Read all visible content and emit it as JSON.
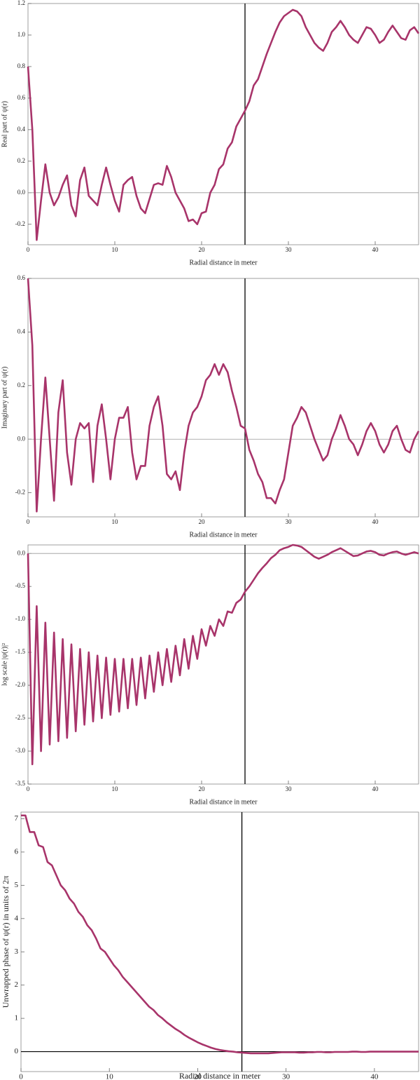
{
  "chart_data": [
    {
      "type": "line",
      "x_label": "Radial distance in meter",
      "y_label": "Real part of ψ(r)",
      "xlim": [
        0,
        45
      ],
      "ylim": [
        -0.33,
        1.2
      ],
      "xticks": [
        0,
        10,
        20,
        30,
        40
      ],
      "yticks": [
        -0.2,
        {
          "value": 0,
          "label": "0.0"
        },
        0.2,
        0.4,
        0.6,
        0.8,
        {
          "value": 1,
          "label": "1.0"
        },
        1.2
      ],
      "vline": 25,
      "hline": 0,
      "x": [
        0,
        0.5,
        1,
        1.5,
        2,
        2.5,
        3,
        3.5,
        4,
        4.5,
        5,
        5.5,
        6,
        6.5,
        7,
        7.5,
        8,
        8.5,
        9,
        9.5,
        10,
        10.5,
        11,
        11.5,
        12,
        12.5,
        13,
        13.5,
        14,
        14.5,
        15,
        15.5,
        16,
        16.5,
        17,
        17.5,
        18,
        18.5,
        19,
        19.5,
        20,
        20.5,
        21,
        21.5,
        22,
        22.5,
        23,
        23.5,
        24,
        24.5,
        25,
        25.5,
        26,
        26.5,
        27,
        27.5,
        28,
        28.5,
        29,
        29.5,
        30,
        30.5,
        31,
        31.5,
        32,
        32.5,
        33,
        33.5,
        34,
        34.5,
        35,
        35.5,
        36,
        36.5,
        37,
        37.5,
        38,
        38.5,
        39,
        39.5,
        40,
        40.5,
        41,
        41.5,
        42,
        42.5,
        43,
        43.5,
        44,
        44.5,
        45
      ],
      "series": [
        {
          "color": "#a8346a",
          "values": [
            0.8,
            0.4,
            -0.3,
            -0.05,
            0.18,
            0.0,
            -0.08,
            -0.03,
            0.05,
            0.11,
            -0.08,
            -0.15,
            0.08,
            0.16,
            -0.02,
            -0.05,
            -0.08,
            0.05,
            0.16,
            0.05,
            -0.05,
            -0.12,
            0.05,
            0.08,
            0.1,
            -0.02,
            -0.1,
            -0.13,
            -0.04,
            0.05,
            0.06,
            0.05,
            0.17,
            0.1,
            0.0,
            -0.05,
            -0.1,
            -0.18,
            -0.17,
            -0.2,
            -0.13,
            -0.12,
            0.0,
            0.05,
            0.15,
            0.18,
            0.28,
            0.32,
            0.42,
            0.47,
            0.52,
            0.58,
            0.68,
            0.72,
            0.8,
            0.88,
            0.95,
            1.02,
            1.08,
            1.12,
            1.14,
            1.16,
            1.15,
            1.12,
            1.05,
            1.0,
            0.95,
            0.92,
            0.9,
            0.95,
            1.02,
            1.05,
            1.09,
            1.05,
            1.0,
            0.97,
            0.95,
            1.0,
            1.05,
            1.04,
            1.0,
            0.95,
            0.97,
            1.02,
            1.06,
            1.02,
            0.98,
            0.97,
            1.03,
            1.05,
            1.01
          ]
        }
      ]
    },
    {
      "type": "line",
      "x_label": "Radial distance in meter",
      "y_label": "Imaginary part of ψ(r)",
      "xlim": [
        0,
        45
      ],
      "ylim": [
        -0.29,
        0.6
      ],
      "xticks": [
        0,
        10,
        20,
        30,
        40
      ],
      "yticks": [
        -0.2,
        {
          "value": 0,
          "label": "0.0"
        },
        0.2,
        0.4,
        0.6
      ],
      "vline": 25,
      "hline": 0,
      "x": [
        0,
        0.5,
        1,
        1.5,
        2,
        2.5,
        3,
        3.5,
        4,
        4.5,
        5,
        5.5,
        6,
        6.5,
        7,
        7.5,
        8,
        8.5,
        9,
        9.5,
        10,
        10.5,
        11,
        11.5,
        12,
        12.5,
        13,
        13.5,
        14,
        14.5,
        15,
        15.5,
        16,
        16.5,
        17,
        17.5,
        18,
        18.5,
        19,
        19.5,
        20,
        20.5,
        21,
        21.5,
        22,
        22.5,
        23,
        23.5,
        24,
        24.5,
        25,
        25.5,
        26,
        26.5,
        27,
        27.5,
        28,
        28.5,
        29,
        29.5,
        30,
        30.5,
        31,
        31.5,
        32,
        32.5,
        33,
        33.5,
        34,
        34.5,
        35,
        35.5,
        36,
        36.5,
        37,
        37.5,
        38,
        38.5,
        39,
        39.5,
        40,
        40.5,
        41,
        41.5,
        42,
        42.5,
        43,
        43.5,
        44,
        44.5,
        45
      ],
      "series": [
        {
          "color": "#a8346a",
          "values": [
            0.6,
            0.35,
            -0.27,
            0.0,
            0.23,
            0.0,
            -0.23,
            0.1,
            0.22,
            -0.05,
            -0.17,
            0.0,
            0.06,
            0.04,
            0.06,
            -0.16,
            0.05,
            0.13,
            0.0,
            -0.15,
            0.0,
            0.08,
            0.08,
            0.12,
            -0.05,
            -0.15,
            -0.1,
            -0.1,
            0.05,
            0.12,
            0.16,
            0.05,
            -0.13,
            -0.15,
            -0.12,
            -0.19,
            -0.05,
            0.05,
            0.1,
            0.12,
            0.16,
            0.22,
            0.24,
            0.28,
            0.24,
            0.28,
            0.25,
            0.18,
            0.12,
            0.05,
            0.04,
            -0.04,
            -0.08,
            -0.13,
            -0.16,
            -0.22,
            -0.22,
            -0.24,
            -0.19,
            -0.15,
            -0.05,
            0.05,
            0.08,
            0.12,
            0.1,
            0.05,
            0.0,
            -0.04,
            -0.08,
            -0.06,
            0.0,
            0.04,
            0.09,
            0.05,
            0.0,
            -0.02,
            -0.06,
            -0.02,
            0.03,
            0.06,
            0.03,
            -0.02,
            -0.05,
            -0.02,
            0.03,
            0.05,
            0.0,
            -0.04,
            -0.05,
            0.0,
            0.03
          ]
        }
      ]
    },
    {
      "type": "line",
      "x_label": "Radial distance in meter",
      "y_label": "log scale  |ψ(r)|²",
      "xlim": [
        0,
        45
      ],
      "ylim": [
        -3.5,
        0.13
      ],
      "xticks": [
        0,
        10,
        20,
        30,
        40
      ],
      "yticks": [
        {
          "value": 0,
          "label": "0.0"
        },
        -0.5,
        {
          "value": -1,
          "label": "-1.0"
        },
        -1.5,
        {
          "value": -2,
          "label": "-2.0"
        },
        -2.5,
        {
          "value": -3,
          "label": "-3.0"
        },
        -3.5
      ],
      "vline": 25,
      "hline": 0,
      "x": [
        0,
        0.5,
        1,
        1.5,
        2,
        2.5,
        3,
        3.5,
        4,
        4.5,
        5,
        5.5,
        6,
        6.5,
        7,
        7.5,
        8,
        8.5,
        9,
        9.5,
        10,
        10.5,
        11,
        11.5,
        12,
        12.5,
        13,
        13.5,
        14,
        14.5,
        15,
        15.5,
        16,
        16.5,
        17,
        17.5,
        18,
        18.5,
        19,
        19.5,
        20,
        20.5,
        21,
        21.5,
        22,
        22.5,
        23,
        23.5,
        24,
        24.5,
        25,
        25.5,
        26,
        26.5,
        27,
        27.5,
        28,
        28.5,
        29,
        29.5,
        30,
        30.5,
        31,
        31.5,
        32,
        32.5,
        33,
        33.5,
        34,
        34.5,
        35,
        35.5,
        36,
        36.5,
        37,
        37.5,
        38,
        38.5,
        39,
        39.5,
        40,
        40.5,
        41,
        41.5,
        42,
        42.5,
        43,
        43.5,
        44,
        44.5,
        45
      ],
      "series": [
        {
          "color": "#a8346a",
          "values": [
            0,
            -3.2,
            -0.8,
            -3.0,
            -1.05,
            -2.9,
            -1.2,
            -2.85,
            -1.3,
            -2.8,
            -1.38,
            -2.7,
            -1.45,
            -2.6,
            -1.5,
            -2.55,
            -1.55,
            -2.5,
            -1.58,
            -2.45,
            -1.6,
            -2.4,
            -1.6,
            -2.35,
            -1.6,
            -2.3,
            -1.58,
            -2.2,
            -1.55,
            -2.1,
            -1.5,
            -2.0,
            -1.45,
            -1.95,
            -1.4,
            -1.85,
            -1.3,
            -1.75,
            -1.25,
            -1.6,
            -1.15,
            -1.4,
            -1.1,
            -1.25,
            -1.0,
            -1.1,
            -0.88,
            -0.9,
            -0.75,
            -0.7,
            -0.58,
            -0.5,
            -0.4,
            -0.3,
            -0.22,
            -0.15,
            -0.07,
            -0.02,
            0.05,
            0.08,
            0.1,
            0.13,
            0.12,
            0.1,
            0.05,
            0.0,
            -0.05,
            -0.08,
            -0.05,
            -0.02,
            0.02,
            0.05,
            0.08,
            0.04,
            0.0,
            -0.04,
            -0.03,
            0.0,
            0.03,
            0.04,
            0.02,
            -0.02,
            -0.03,
            0.0,
            0.02,
            0.03,
            0.0,
            -0.02,
            0.0,
            0.02,
            0.0
          ]
        }
      ]
    },
    {
      "type": "line",
      "x_label": "Radial distance in meter",
      "y_label": "Unwrapped phase of ψ(r) in units of 2π",
      "xlim": [
        0,
        45
      ],
      "ylim": [
        -0.6,
        7.2
      ],
      "xticks": [
        0,
        10,
        20,
        30,
        40
      ],
      "yticks": [
        0,
        1,
        2,
        3,
        4,
        5,
        6,
        7
      ],
      "vline": 25,
      "hline": 0,
      "x": [
        0,
        0.5,
        1,
        1.5,
        2,
        2.5,
        3,
        3.5,
        4,
        4.5,
        5,
        5.5,
        6,
        6.5,
        7,
        7.5,
        8,
        8.5,
        9,
        9.5,
        10,
        10.5,
        11,
        11.5,
        12,
        12.5,
        13,
        13.5,
        14,
        14.5,
        15,
        15.5,
        16,
        16.5,
        17,
        17.5,
        18,
        18.5,
        19,
        19.5,
        20,
        20.5,
        21,
        21.5,
        22,
        22.5,
        23,
        23.5,
        24,
        24.5,
        25,
        25.5,
        26,
        26.5,
        27,
        27.5,
        28,
        28.5,
        29,
        29.5,
        30,
        30.5,
        31,
        31.5,
        32,
        32.5,
        33,
        33.5,
        34,
        34.5,
        35,
        35.5,
        36,
        36.5,
        37,
        37.5,
        38,
        38.5,
        39,
        39.5,
        40,
        40.5,
        41,
        41.5,
        42,
        42.5,
        43,
        43.5,
        44,
        44.5,
        45
      ],
      "series": [
        {
          "color": "#a8346a",
          "values": [
            7.1,
            7.1,
            6.6,
            6.6,
            6.2,
            6.15,
            5.7,
            5.6,
            5.3,
            5.0,
            4.85,
            4.6,
            4.45,
            4.2,
            4.05,
            3.8,
            3.65,
            3.4,
            3.1,
            3.0,
            2.8,
            2.6,
            2.45,
            2.25,
            2.1,
            1.95,
            1.8,
            1.65,
            1.5,
            1.35,
            1.25,
            1.1,
            1.0,
            0.88,
            0.78,
            0.68,
            0.6,
            0.5,
            0.42,
            0.35,
            0.28,
            0.22,
            0.17,
            0.12,
            0.08,
            0.05,
            0.03,
            0.01,
            0.0,
            -0.02,
            -0.03,
            -0.04,
            -0.05,
            -0.05,
            -0.05,
            -0.05,
            -0.05,
            -0.04,
            -0.03,
            -0.02,
            -0.02,
            -0.02,
            -0.02,
            -0.03,
            -0.03,
            -0.02,
            -0.02,
            -0.01,
            -0.01,
            -0.02,
            -0.02,
            -0.01,
            -0.01,
            -0.01,
            -0.01,
            0.0,
            0.0,
            -0.01,
            -0.01,
            0.0,
            0.0,
            0.0,
            0.0,
            0.0,
            0.0,
            0.0,
            0.0,
            0.0,
            0.0,
            0.0,
            0.0
          ]
        }
      ]
    }
  ]
}
